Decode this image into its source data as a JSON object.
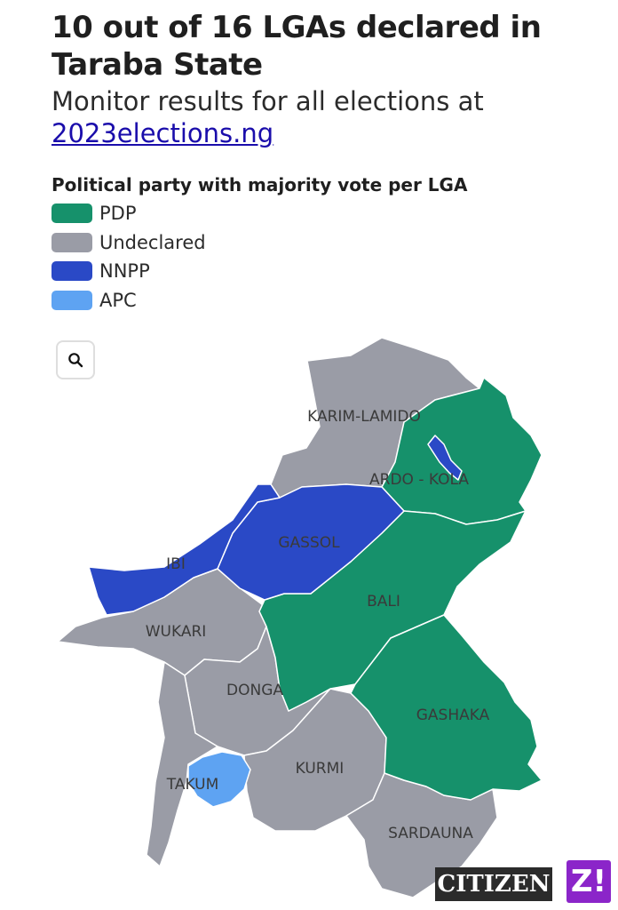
{
  "header": {
    "title": "10 out of 16 LGAs declared in Taraba State",
    "subtitle_text": "Monitor results for all elections at",
    "subtitle_link": "2023elections.ng"
  },
  "legend": {
    "title": "Political party with majority vote per LGA",
    "items": [
      {
        "label": "PDP",
        "color": "#16916b"
      },
      {
        "label": "Undeclared",
        "color": "#9a9ca6"
      },
      {
        "label": "NNPP",
        "color": "#2a49c6"
      },
      {
        "label": "APC",
        "color": "#5ea3f2"
      }
    ]
  },
  "map": {
    "search_icon": "search-icon",
    "lgas": [
      {
        "id": "karim-lamido",
        "label": "KARIM-LAMIDO",
        "party": "Undeclared"
      },
      {
        "id": "ardo-kola",
        "label": "ARDO - KOLA",
        "party": "PDP"
      },
      {
        "id": "gassol",
        "label": "GASSOL",
        "party": "NNPP"
      },
      {
        "id": "ibi",
        "label": "IBI",
        "party": "NNPP"
      },
      {
        "id": "bali",
        "label": "BALI",
        "party": "PDP"
      },
      {
        "id": "wukari",
        "label": "WUKARI",
        "party": "Undeclared"
      },
      {
        "id": "donga",
        "label": "DONGA",
        "party": "Undeclared"
      },
      {
        "id": "gashaka",
        "label": "GASHAKA",
        "party": "PDP"
      },
      {
        "id": "takum",
        "label": "TAKUM",
        "party": "APC"
      },
      {
        "id": "kurmi",
        "label": "KURMI",
        "party": "Undeclared"
      },
      {
        "id": "sardauna",
        "label": "SARDAUNA",
        "party": "Undeclared"
      }
    ]
  },
  "logos": {
    "citizen": "CITIZEN",
    "z": "Z!"
  }
}
